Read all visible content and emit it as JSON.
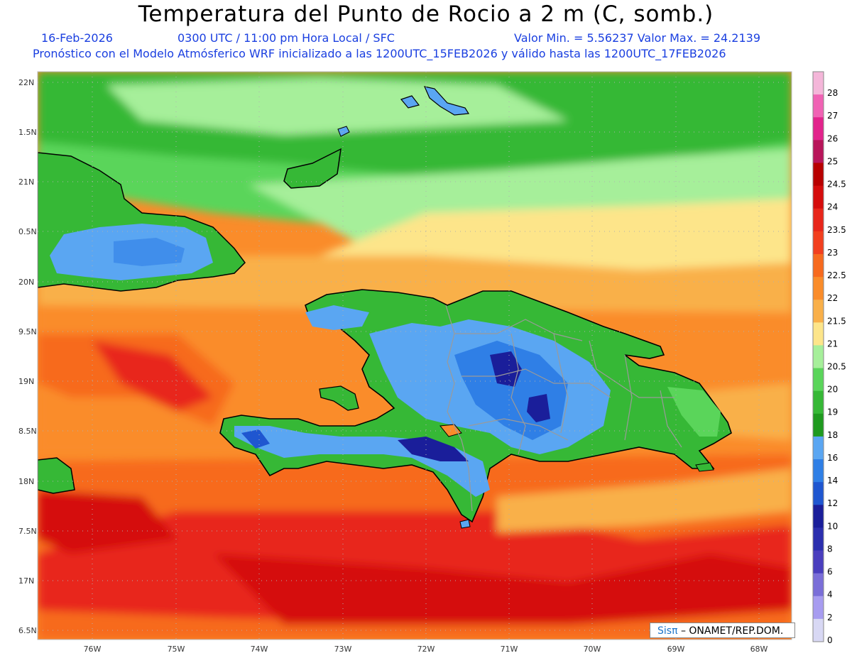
{
  "header": {
    "title": "Temperatura del Punto de Rocio a 2 m (C, somb.)",
    "date": "16-Feb-2026",
    "time": "0300 UTC / 11:00 pm Hora Local / SFC",
    "min_max": "Valor Min. = 5.56237  Valor Max. = 24.2139",
    "model_info": "Pronóstico con el Modelo Atmósferico WRF inicializado a las 1200UTC_15FEB2026 y válido hasta las  1200UTC_17FEB2026"
  },
  "map": {
    "lat_labels": [
      "22N",
      "1.5N",
      "21N",
      "0.5N",
      "20N",
      "9.5N",
      "19N",
      "8.5N",
      "18N",
      "7.5N",
      "17N",
      "6.5N"
    ],
    "lon_labels": [
      "76W",
      "75W",
      "74W",
      "73W",
      "72W",
      "71W",
      "70W",
      "69W",
      "68W"
    ],
    "gridlines": true
  },
  "colorbar": {
    "levels": [
      "28",
      "27",
      "26",
      "25",
      "24.5",
      "24",
      "23.5",
      "23",
      "22.5",
      "22",
      "21.5",
      "21",
      "20.5",
      "20",
      "19",
      "18",
      "16",
      "14",
      "12",
      "10",
      "8",
      "6",
      "4",
      "2",
      "0"
    ],
    "colors": [
      "#f4b6d9",
      "#f062b4",
      "#e2238c",
      "#b8155a",
      "#b80000",
      "#d50c0c",
      "#e8261a",
      "#f23f1e",
      "#f76a1e",
      "#fa8c2a",
      "#f9b04a",
      "#fde58a",
      "#a6ef9a",
      "#5ad55a",
      "#36b836",
      "#1f9a1f",
      "#5aa6f2",
      "#2f7fe6",
      "#1f56d0",
      "#1a1e9a",
      "#2b2eae",
      "#4a3ebe",
      "#7a6ed8",
      "#a79cf0",
      "#d8d8f4"
    ]
  },
  "credit": {
    "brand": "Sisπ",
    "text": "– ONAMET/REP.DOM."
  }
}
